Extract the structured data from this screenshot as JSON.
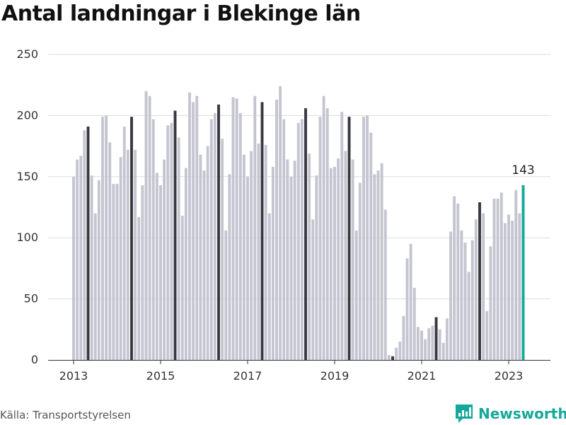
{
  "chart_data": {
    "type": "bar",
    "title": "Antal landningar i Blekinge län",
    "source": "Källa: Transportstyrelsen",
    "brand": "Newsworthy",
    "ylim": [
      0,
      250
    ],
    "y_ticks": [
      0,
      50,
      100,
      150,
      200,
      250
    ],
    "x_ticks": [
      "2013",
      "2015",
      "2017",
      "2019",
      "2021",
      "2023"
    ],
    "grid": "horizontal",
    "colors": {
      "default": "#c5c5d1",
      "highlight": "#383840",
      "latest": "#14a89a"
    },
    "annotation": {
      "label": "143",
      "category": "2023-05"
    },
    "categories": [
      "2013-01",
      "2013-02",
      "2013-03",
      "2013-04",
      "2013-05",
      "2013-06",
      "2013-07",
      "2013-08",
      "2013-09",
      "2013-10",
      "2013-11",
      "2013-12",
      "2014-01",
      "2014-02",
      "2014-03",
      "2014-04",
      "2014-05",
      "2014-06",
      "2014-07",
      "2014-08",
      "2014-09",
      "2014-10",
      "2014-11",
      "2014-12",
      "2015-01",
      "2015-02",
      "2015-03",
      "2015-04",
      "2015-05",
      "2015-06",
      "2015-07",
      "2015-08",
      "2015-09",
      "2015-10",
      "2015-11",
      "2015-12",
      "2016-01",
      "2016-02",
      "2016-03",
      "2016-04",
      "2016-05",
      "2016-06",
      "2016-07",
      "2016-08",
      "2016-09",
      "2016-10",
      "2016-11",
      "2016-12",
      "2017-01",
      "2017-02",
      "2017-03",
      "2017-04",
      "2017-05",
      "2017-06",
      "2017-07",
      "2017-08",
      "2017-09",
      "2017-10",
      "2017-11",
      "2017-12",
      "2018-01",
      "2018-02",
      "2018-03",
      "2018-04",
      "2018-05",
      "2018-06",
      "2018-07",
      "2018-08",
      "2018-09",
      "2018-10",
      "2018-11",
      "2018-12",
      "2019-01",
      "2019-02",
      "2019-03",
      "2019-04",
      "2019-05",
      "2019-06",
      "2019-07",
      "2019-08",
      "2019-09",
      "2019-10",
      "2019-11",
      "2019-12",
      "2020-01",
      "2020-02",
      "2020-03",
      "2020-04",
      "2020-05",
      "2020-06",
      "2020-07",
      "2020-08",
      "2020-09",
      "2020-10",
      "2020-11",
      "2020-12",
      "2021-01",
      "2021-02",
      "2021-03",
      "2021-04",
      "2021-05",
      "2021-06",
      "2021-07",
      "2021-08",
      "2021-09",
      "2021-10",
      "2021-11",
      "2021-12",
      "2022-01",
      "2022-02",
      "2022-03",
      "2022-04",
      "2022-05",
      "2022-06",
      "2022-07",
      "2022-08",
      "2022-09",
      "2022-10",
      "2022-11",
      "2022-12",
      "2023-01",
      "2023-02",
      "2023-03",
      "2023-04",
      "2023-05"
    ],
    "values": [
      150,
      164,
      167,
      188,
      191,
      151,
      120,
      147,
      199,
      200,
      178,
      144,
      144,
      166,
      191,
      172,
      199,
      172,
      117,
      143,
      220,
      216,
      197,
      153,
      143,
      164,
      192,
      194,
      204,
      182,
      118,
      157,
      219,
      211,
      216,
      168,
      155,
      175,
      197,
      202,
      209,
      181,
      106,
      152,
      215,
      214,
      202,
      168,
      150,
      171,
      216,
      177,
      211,
      176,
      120,
      158,
      213,
      224,
      197,
      164,
      150,
      163,
      194,
      197,
      206,
      169,
      115,
      151,
      199,
      216,
      206,
      157,
      158,
      165,
      203,
      171,
      199,
      164,
      106,
      145,
      199,
      200,
      186,
      152,
      155,
      161,
      123,
      4,
      3,
      10,
      15,
      36,
      83,
      95,
      59,
      27,
      24,
      17,
      26,
      28,
      35,
      25,
      14,
      34,
      105,
      134,
      128,
      106,
      96,
      72,
      98,
      115,
      129,
      120,
      40,
      93,
      132,
      132,
      137,
      112,
      119,
      114,
      139,
      120,
      143
    ],
    "highlight_months": [
      5
    ]
  }
}
